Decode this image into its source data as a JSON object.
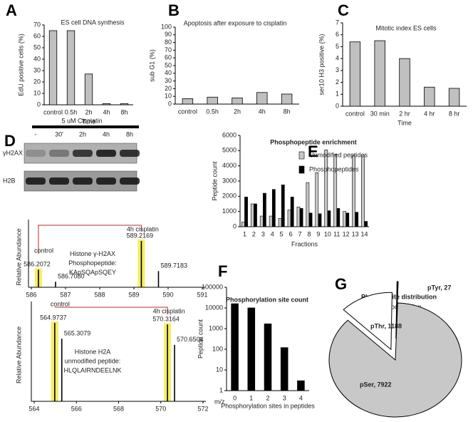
{
  "chart_data": [
    {
      "type": "bar",
      "panel": "A",
      "title": "ES cell DNA synthesis",
      "ylabel": "EdU positive cells (%)",
      "xlabel": "Time",
      "categories": [
        "control",
        "0.5h",
        "2h",
        "4h",
        "8h"
      ],
      "values": [
        65,
        65,
        27,
        1,
        1
      ],
      "color": "#c0c0c0",
      "ylim": [
        0,
        70
      ],
      "yticks": [
        0,
        10,
        20,
        30,
        40,
        50,
        60,
        70
      ]
    },
    {
      "type": "bar",
      "panel": "B",
      "title": "Apoptosis after exposure to cisplatin",
      "ylabel": "sub G1 (%)",
      "categories": [
        "control",
        "0.5h",
        "2h",
        "4h",
        "8h"
      ],
      "values": [
        7,
        9,
        8,
        15,
        13
      ],
      "color": "#c0c0c0",
      "ylim": [
        0,
        100
      ],
      "yticks": [
        0,
        10,
        20,
        30,
        40,
        50,
        60,
        70,
        80,
        90,
        100
      ]
    },
    {
      "type": "bar",
      "panel": "C",
      "title": "Mitotic index ES cells",
      "ylabel": "ser10 H3 positive (%)",
      "xlabel": "Time",
      "categories": [
        "control",
        "30 min",
        "2 hr",
        "4 hr",
        "8 hr"
      ],
      "values": [
        5.4,
        5.5,
        4.0,
        1.6,
        1.5
      ],
      "color": "#c0c0c0",
      "ylim": [
        0,
        7
      ],
      "yticks": [
        0,
        1,
        2,
        3,
        4,
        5,
        6,
        7
      ]
    },
    {
      "type": "blot",
      "panel": "D",
      "title": "5 uM Cisplatin",
      "lanes": [
        "-",
        "30'",
        "2h",
        "4h",
        "8h"
      ],
      "rows": [
        "γH2AX",
        "H2B"
      ]
    },
    {
      "type": "spectrum",
      "ylabel": "Relative Abundance",
      "annotations": [
        "control",
        "4h cisplatin"
      ],
      "notes": [
        "Histone γ-H2AX",
        "Phosphopeptide:",
        "KApSQApSQEY"
      ],
      "x": [
        586.2072,
        586.708,
        589.2169,
        589.7183
      ],
      "x_labels": [
        "586.2072",
        "586.7080",
        "589.2169",
        "589.7183"
      ],
      "values": [
        38,
        12,
        100,
        35
      ],
      "xlim": [
        586,
        591
      ],
      "xticks": [
        586,
        587,
        588,
        589,
        590,
        591
      ],
      "ylim": [
        0,
        100
      ]
    },
    {
      "type": "spectrum",
      "ylabel": "Relative Abundance",
      "xlabel": "m/z",
      "annotations": [
        "control",
        "4h cisplatin"
      ],
      "notes": [
        "Histone H2A",
        "unmodified peptide:",
        "HLQLAIRNDEELNK"
      ],
      "x": [
        564.9737,
        565.3079,
        570.3164,
        570.6504
      ],
      "x_labels": [
        "564.9737",
        "565.3079",
        "570.3164",
        "570.6504"
      ],
      "values": [
        100,
        80,
        98,
        72
      ],
      "xlim": [
        564,
        572
      ],
      "xticks": [
        564,
        566,
        568,
        570,
        572
      ],
      "ylim": [
        0,
        100
      ]
    },
    {
      "type": "bar",
      "panel": "E",
      "title": "Phosphopeptide enrichment",
      "ylabel": "Peptide count",
      "xlabel": "Fractions",
      "categories": [
        "1",
        "2",
        "3",
        "4",
        "5",
        "6",
        "7",
        "8",
        "9",
        "10",
        "11",
        "12",
        "13",
        "14"
      ],
      "series": [
        {
          "name": "Unmodified peptides",
          "color": "#c8c8c8",
          "values": [
            300,
            1500,
            700,
            700,
            550,
            1100,
            1300,
            2900,
            3550,
            5050,
            4750,
            1000,
            4700,
            4700
          ]
        },
        {
          "name": "Phosphopeptides",
          "color": "#000000",
          "values": [
            1950,
            1500,
            2200,
            2450,
            2750,
            1950,
            1200,
            900,
            850,
            1050,
            1200,
            900,
            950,
            350
          ]
        }
      ],
      "ylim": [
        0,
        6000
      ],
      "yticks": [
        0,
        1000,
        2000,
        3000,
        4000,
        5000,
        6000
      ]
    },
    {
      "type": "bar",
      "panel": "F",
      "title": "Phosphorylation site count",
      "ylabel": "Peptide count",
      "xlabel": "Phosphorylation sites in peptides",
      "categories": [
        "0",
        "1",
        "2",
        "3",
        "4"
      ],
      "values": [
        16000,
        10000,
        1700,
        120,
        3
      ],
      "color": "#000000",
      "log": true,
      "ylim": [
        1,
        100000
      ],
      "yticks": [
        1,
        10,
        100,
        1000,
        10000,
        100000
      ]
    },
    {
      "type": "pie",
      "panel": "G",
      "title": "Phosphosite distribution",
      "subtitle": "Site-localization",
      "labels": [
        "pSer, 7922",
        "pThr, 1188",
        "pTyr, 27"
      ],
      "values": [
        7922,
        1188,
        27
      ],
      "colors": [
        "#c8c8c8",
        "#ffffff",
        "#000000"
      ]
    }
  ]
}
